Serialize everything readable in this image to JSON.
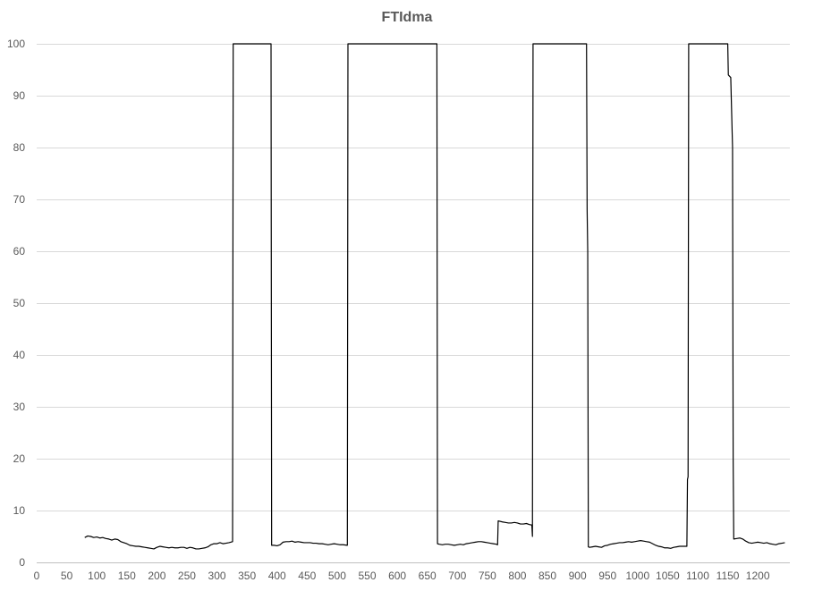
{
  "chart_data": {
    "type": "line",
    "title": "FTIdma",
    "xlabel": "",
    "ylabel": "",
    "xlim": [
      0,
      1250
    ],
    "ylim": [
      0,
      100
    ],
    "x_ticks": [
      "0",
      "50",
      "100",
      "150",
      "200",
      "250",
      "300",
      "350",
      "400",
      "450",
      "500",
      "550",
      "600",
      "650",
      "700",
      "750",
      "800",
      "850",
      "900",
      "950",
      "1000",
      "1050",
      "1100",
      "1150",
      "1200"
    ],
    "y_ticks": [
      "0",
      "10",
      "20",
      "30",
      "40",
      "50",
      "60",
      "70",
      "80",
      "90",
      "100"
    ],
    "grid": "horizontal",
    "legend": "none",
    "series": [
      {
        "color": "#000000",
        "points": [
          [
            80,
            4.8
          ],
          [
            85,
            5.1
          ],
          [
            90,
            5.0
          ],
          [
            95,
            4.8
          ],
          [
            100,
            4.9
          ],
          [
            105,
            4.7
          ],
          [
            110,
            4.8
          ],
          [
            115,
            4.6
          ],
          [
            120,
            4.5
          ],
          [
            125,
            4.3
          ],
          [
            130,
            4.5
          ],
          [
            135,
            4.4
          ],
          [
            140,
            4.0
          ],
          [
            145,
            3.8
          ],
          [
            150,
            3.6
          ],
          [
            155,
            3.3
          ],
          [
            160,
            3.2
          ],
          [
            165,
            3.1
          ],
          [
            170,
            3.1
          ],
          [
            175,
            3.0
          ],
          [
            180,
            2.9
          ],
          [
            185,
            2.8
          ],
          [
            190,
            2.7
          ],
          [
            195,
            2.6
          ],
          [
            200,
            2.9
          ],
          [
            205,
            3.1
          ],
          [
            210,
            3.0
          ],
          [
            215,
            2.9
          ],
          [
            220,
            2.8
          ],
          [
            225,
            2.9
          ],
          [
            230,
            2.8
          ],
          [
            235,
            2.8
          ],
          [
            240,
            2.9
          ],
          [
            245,
            2.9
          ],
          [
            250,
            2.7
          ],
          [
            255,
            2.9
          ],
          [
            260,
            2.8
          ],
          [
            265,
            2.6
          ],
          [
            270,
            2.6
          ],
          [
            275,
            2.7
          ],
          [
            280,
            2.8
          ],
          [
            285,
            3.0
          ],
          [
            290,
            3.4
          ],
          [
            295,
            3.6
          ],
          [
            300,
            3.6
          ],
          [
            305,
            3.8
          ],
          [
            310,
            3.6
          ],
          [
            315,
            3.7
          ],
          [
            320,
            3.8
          ],
          [
            326,
            4.0
          ],
          [
            327,
            100
          ],
          [
            390,
            100
          ],
          [
            391,
            3.3
          ],
          [
            395,
            3.3
          ],
          [
            400,
            3.2
          ],
          [
            405,
            3.4
          ],
          [
            410,
            3.9
          ],
          [
            415,
            4.0
          ],
          [
            420,
            4.0
          ],
          [
            425,
            4.1
          ],
          [
            430,
            3.9
          ],
          [
            435,
            4.0
          ],
          [
            440,
            3.9
          ],
          [
            445,
            3.8
          ],
          [
            450,
            3.8
          ],
          [
            455,
            3.8
          ],
          [
            460,
            3.7
          ],
          [
            465,
            3.7
          ],
          [
            470,
            3.6
          ],
          [
            475,
            3.6
          ],
          [
            480,
            3.5
          ],
          [
            485,
            3.4
          ],
          [
            490,
            3.5
          ],
          [
            495,
            3.6
          ],
          [
            500,
            3.5
          ],
          [
            505,
            3.4
          ],
          [
            510,
            3.4
          ],
          [
            517,
            3.3
          ],
          [
            518,
            100
          ],
          [
            666,
            100
          ],
          [
            667,
            3.6
          ],
          [
            670,
            3.5
          ],
          [
            675,
            3.4
          ],
          [
            680,
            3.5
          ],
          [
            685,
            3.5
          ],
          [
            690,
            3.4
          ],
          [
            695,
            3.3
          ],
          [
            700,
            3.4
          ],
          [
            705,
            3.5
          ],
          [
            710,
            3.4
          ],
          [
            715,
            3.6
          ],
          [
            720,
            3.7
          ],
          [
            725,
            3.8
          ],
          [
            730,
            3.9
          ],
          [
            735,
            4.0
          ],
          [
            740,
            4.0
          ],
          [
            745,
            3.9
          ],
          [
            750,
            3.8
          ],
          [
            755,
            3.7
          ],
          [
            760,
            3.6
          ],
          [
            765,
            3.5
          ],
          [
            767,
            3.4
          ],
          [
            768,
            8.0
          ],
          [
            775,
            7.8
          ],
          [
            780,
            7.7
          ],
          [
            785,
            7.6
          ],
          [
            790,
            7.6
          ],
          [
            795,
            7.7
          ],
          [
            800,
            7.6
          ],
          [
            805,
            7.4
          ],
          [
            810,
            7.4
          ],
          [
            815,
            7.5
          ],
          [
            820,
            7.3
          ],
          [
            824,
            7.2
          ],
          [
            825,
            5.0
          ],
          [
            826,
            100
          ],
          [
            915,
            100
          ],
          [
            916,
            68
          ],
          [
            917,
            60
          ],
          [
            918,
            3.0
          ],
          [
            920,
            2.9
          ],
          [
            925,
            3.0
          ],
          [
            930,
            3.1
          ],
          [
            935,
            3.0
          ],
          [
            940,
            2.9
          ],
          [
            945,
            3.2
          ],
          [
            950,
            3.3
          ],
          [
            955,
            3.5
          ],
          [
            960,
            3.6
          ],
          [
            965,
            3.7
          ],
          [
            970,
            3.8
          ],
          [
            975,
            3.8
          ],
          [
            980,
            3.9
          ],
          [
            985,
            4.0
          ],
          [
            990,
            3.9
          ],
          [
            995,
            4.0
          ],
          [
            1000,
            4.1
          ],
          [
            1005,
            4.2
          ],
          [
            1010,
            4.1
          ],
          [
            1015,
            4.0
          ],
          [
            1020,
            3.9
          ],
          [
            1025,
            3.6
          ],
          [
            1030,
            3.3
          ],
          [
            1035,
            3.1
          ],
          [
            1040,
            3.0
          ],
          [
            1045,
            2.8
          ],
          [
            1050,
            2.8
          ],
          [
            1055,
            2.7
          ],
          [
            1060,
            2.9
          ],
          [
            1065,
            3.0
          ],
          [
            1070,
            3.1
          ],
          [
            1075,
            3.1
          ],
          [
            1082,
            3.1
          ],
          [
            1083,
            16
          ],
          [
            1084,
            16.5
          ],
          [
            1085,
            100
          ],
          [
            1150,
            100
          ],
          [
            1151,
            94
          ],
          [
            1155,
            93.5
          ],
          [
            1158,
            80
          ],
          [
            1159,
            20
          ],
          [
            1160,
            4.5
          ],
          [
            1165,
            4.6
          ],
          [
            1170,
            4.7
          ],
          [
            1175,
            4.5
          ],
          [
            1180,
            4.1
          ],
          [
            1185,
            3.8
          ],
          [
            1190,
            3.7
          ],
          [
            1195,
            3.8
          ],
          [
            1200,
            3.9
          ],
          [
            1205,
            3.8
          ],
          [
            1210,
            3.7
          ],
          [
            1215,
            3.8
          ],
          [
            1220,
            3.6
          ],
          [
            1225,
            3.5
          ],
          [
            1230,
            3.4
          ],
          [
            1235,
            3.6
          ],
          [
            1240,
            3.7
          ],
          [
            1245,
            3.8
          ]
        ]
      }
    ]
  }
}
